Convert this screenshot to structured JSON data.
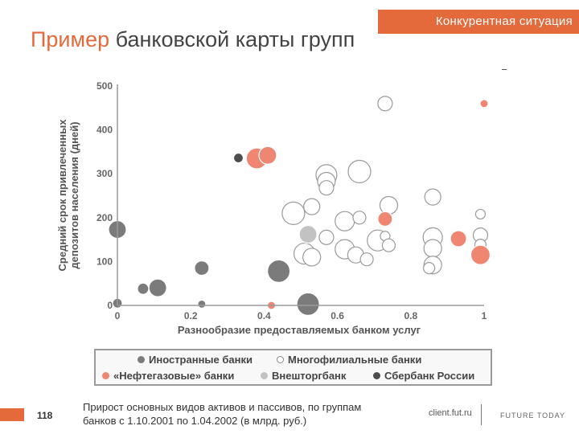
{
  "header": {
    "section_label": "Конкурентная ситуация",
    "title_accent": "Пример",
    "title_rest": " банковской карты групп",
    "accent_color": "#e56a3b"
  },
  "chart_data": {
    "type": "scatter",
    "xlabel": "Разнообразие предоставляемых банком услуг",
    "ylabel_line1": "Средний срок привлеченных",
    "ylabel_line2": "депозитов населения (дней)",
    "xlim": [
      0,
      1
    ],
    "ylim": [
      0,
      500
    ],
    "x_ticks": [
      "0",
      "0.2",
      "0.4",
      "0.6",
      "0.8",
      "1"
    ],
    "y_ticks": [
      "0",
      "100",
      "200",
      "300",
      "400",
      "500"
    ],
    "grid": false,
    "size_encoding": "bubble size",
    "series": [
      {
        "name": "Иностранные банки",
        "color": "#7b7b7b",
        "points": [
          {
            "x": 0.0,
            "y": 173,
            "s": 11
          },
          {
            "x": 0.0,
            "y": 5,
            "s": 6
          },
          {
            "x": 0.07,
            "y": 38,
            "s": 7
          },
          {
            "x": 0.11,
            "y": 40,
            "s": 11
          },
          {
            "x": 0.23,
            "y": 85,
            "s": 9
          },
          {
            "x": 0.23,
            "y": 3,
            "s": 5
          },
          {
            "x": 0.44,
            "y": 78,
            "s": 14
          },
          {
            "x": 0.52,
            "y": 3,
            "s": 14
          }
        ]
      },
      {
        "name": "Многофилиальные банки",
        "color": "#ffffff",
        "points": [
          {
            "x": 0.73,
            "y": 460,
            "s": 9
          },
          {
            "x": 0.57,
            "y": 297,
            "s": 13
          },
          {
            "x": 0.57,
            "y": 283,
            "s": 11
          },
          {
            "x": 0.57,
            "y": 268,
            "s": 9
          },
          {
            "x": 0.66,
            "y": 305,
            "s": 14
          },
          {
            "x": 0.48,
            "y": 210,
            "s": 14
          },
          {
            "x": 0.53,
            "y": 225,
            "s": 10
          },
          {
            "x": 0.74,
            "y": 228,
            "s": 11
          },
          {
            "x": 0.86,
            "y": 247,
            "s": 10
          },
          {
            "x": 0.99,
            "y": 208,
            "s": 6
          },
          {
            "x": 0.62,
            "y": 192,
            "s": 12
          },
          {
            "x": 0.66,
            "y": 200,
            "s": 8
          },
          {
            "x": 0.57,
            "y": 155,
            "s": 9
          },
          {
            "x": 0.51,
            "y": 118,
            "s": 13
          },
          {
            "x": 0.53,
            "y": 110,
            "s": 11
          },
          {
            "x": 0.62,
            "y": 128,
            "s": 12
          },
          {
            "x": 0.65,
            "y": 115,
            "s": 10
          },
          {
            "x": 0.68,
            "y": 105,
            "s": 8
          },
          {
            "x": 0.71,
            "y": 148,
            "s": 13
          },
          {
            "x": 0.73,
            "y": 158,
            "s": 6
          },
          {
            "x": 0.74,
            "y": 137,
            "s": 8
          },
          {
            "x": 0.86,
            "y": 155,
            "s": 12
          },
          {
            "x": 0.86,
            "y": 130,
            "s": 11
          },
          {
            "x": 0.86,
            "y": 92,
            "s": 11
          },
          {
            "x": 0.85,
            "y": 85,
            "s": 7
          },
          {
            "x": 0.99,
            "y": 160,
            "s": 9
          },
          {
            "x": 0.99,
            "y": 138,
            "s": 7
          }
        ]
      },
      {
        "name": "«Нефтегазовые» банки",
        "color": "#ef8672",
        "points": [
          {
            "x": 0.38,
            "y": 335,
            "s": 13
          },
          {
            "x": 0.41,
            "y": 342,
            "s": 11
          },
          {
            "x": 1.0,
            "y": 460,
            "s": 5
          },
          {
            "x": 0.73,
            "y": 197,
            "s": 9
          },
          {
            "x": 0.93,
            "y": 152,
            "s": 10
          },
          {
            "x": 0.99,
            "y": 115,
            "s": 12
          },
          {
            "x": 0.42,
            "y": 0,
            "s": 5
          }
        ]
      },
      {
        "name": "Внешторгбанк",
        "color": "#c2c2c2",
        "points": [
          {
            "x": 0.52,
            "y": 162,
            "s": 11
          }
        ]
      },
      {
        "name": "Сбербанк России",
        "color": "#4d4d4d",
        "points": [
          {
            "x": 0.33,
            "y": 336,
            "s": 6
          }
        ]
      }
    ]
  },
  "footer": {
    "page_number": "118",
    "caption_line1": "Прирост основных видов активов и пассивов, по группам",
    "caption_line2": "банков с 1.10.2001 по 1.04.2002 (в млрд. руб.)",
    "site": "client.fut.ru",
    "logo": "FUTURE TODAY"
  }
}
